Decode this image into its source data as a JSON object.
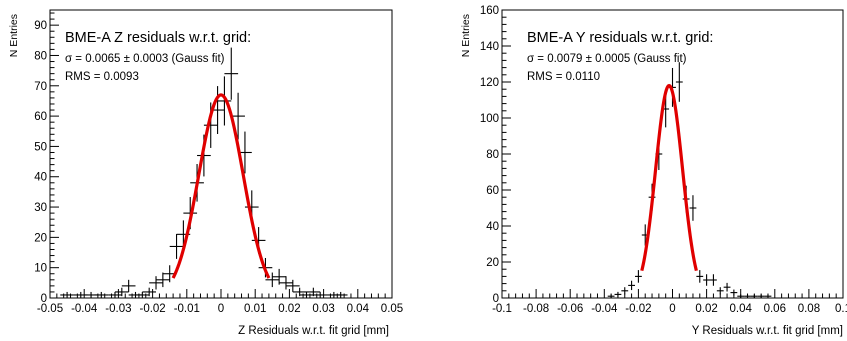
{
  "chart_data": [
    {
      "type": "scatter",
      "title": "BME-A Z residuals w.r.t. grid:",
      "annotations": [
        "σ = 0.0065 ± 0.0003 (Gauss fit)",
        "RMS = 0.0093"
      ],
      "xlabel": "Z Residuals w.r.t. fit grid [mm]",
      "ylabel": "N Entries",
      "xlim": [
        -0.05,
        0.05
      ],
      "ylim": [
        0,
        95
      ],
      "xticks": [
        "-0.05",
        "-0.04",
        "-0.03",
        "-0.02",
        "-0.01",
        "0",
        "0.01",
        "0.02",
        "0.03",
        "0.04",
        "0.05"
      ],
      "yticks": [
        "0",
        "10",
        "20",
        "30",
        "40",
        "50",
        "60",
        "70",
        "80",
        "90"
      ],
      "fit": {
        "type": "gauss",
        "mean": 0.0,
        "sigma": 0.0065,
        "amplitude": 67,
        "range": [
          -0.014,
          0.014
        ],
        "color": "#e00000"
      },
      "series": [
        {
          "x": [
            -0.045,
            -0.041,
            -0.038,
            -0.035,
            -0.033,
            -0.031,
            -0.029,
            -0.027,
            -0.025,
            -0.023,
            -0.021,
            -0.019,
            -0.017,
            -0.015,
            -0.013,
            -0.011,
            -0.009,
            -0.007,
            -0.005,
            -0.003,
            -0.001,
            0.001,
            0.003,
            0.005,
            0.007,
            0.009,
            0.011,
            0.013,
            0.015,
            0.017,
            0.019,
            0.021,
            0.023,
            0.025,
            0.027,
            0.029,
            0.031,
            0.033,
            0.035,
            0.037
          ],
          "y": [
            1,
            1,
            1,
            1,
            0,
            1,
            2,
            4,
            1,
            1,
            2,
            5,
            6,
            8,
            17,
            21,
            28,
            38,
            47,
            57,
            62,
            65,
            74,
            60,
            48,
            30,
            19,
            10,
            6,
            7,
            5,
            4,
            2,
            1,
            2,
            1,
            0,
            1,
            1,
            0
          ],
          "err": [
            1,
            1,
            1,
            1,
            0,
            1,
            1.4,
            2,
            1,
            1,
            1.4,
            2.2,
            2.4,
            2.8,
            4.1,
            4.6,
            5.3,
            6.2,
            6.9,
            7.5,
            7.9,
            8.1,
            8.6,
            7.7,
            6.9,
            5.5,
            4.4,
            3.2,
            2.4,
            2.6,
            2.2,
            2,
            1.4,
            1,
            1.4,
            1,
            0,
            1,
            1,
            0
          ]
        }
      ]
    },
    {
      "type": "scatter",
      "title": "BME-A Y residuals w.r.t. grid:",
      "annotations": [
        "σ = 0.0079 ± 0.0005 (Gauss fit)",
        "RMS = 0.0110"
      ],
      "xlabel": "Y Residuals w.r.t. fit grid [mm]",
      "ylabel": "N Entries",
      "xlim": [
        -0.1,
        0.1
      ],
      "ylim": [
        0,
        160
      ],
      "xticks": [
        "-0.1",
        "-0.08",
        "-0.06",
        "-0.04",
        "-0.02",
        "0",
        "0.02",
        "0.04",
        "0.06",
        "0.08",
        "0.1"
      ],
      "yticks": [
        "0",
        "20",
        "40",
        "60",
        "80",
        "100",
        "120",
        "140",
        "160"
      ],
      "fit": {
        "type": "gauss",
        "mean": -0.002,
        "sigma": 0.0079,
        "amplitude": 118,
        "range": [
          -0.018,
          0.014
        ],
        "color": "#e00000"
      },
      "series": [
        {
          "x": [
            -0.04,
            -0.036,
            -0.032,
            -0.028,
            -0.024,
            -0.02,
            -0.016,
            -0.012,
            -0.008,
            -0.004,
            0.0,
            0.004,
            0.008,
            0.012,
            0.016,
            0.02,
            0.024,
            0.028,
            0.032,
            0.036,
            0.04,
            0.044,
            0.048,
            0.052,
            0.056
          ],
          "y": [
            0,
            1,
            2,
            4,
            7,
            12,
            35,
            56,
            80,
            105,
            117,
            120,
            55,
            50,
            12,
            10,
            10,
            4,
            6,
            3,
            1,
            1,
            1,
            1,
            1
          ],
          "err": [
            0,
            1,
            1.4,
            2,
            2.6,
            3.5,
            5.9,
            7.5,
            8.9,
            10.2,
            10.8,
            11,
            7.4,
            7.1,
            3.5,
            3.2,
            3.2,
            2,
            2.4,
            1.7,
            1,
            1,
            1,
            1,
            1
          ]
        }
      ]
    }
  ]
}
